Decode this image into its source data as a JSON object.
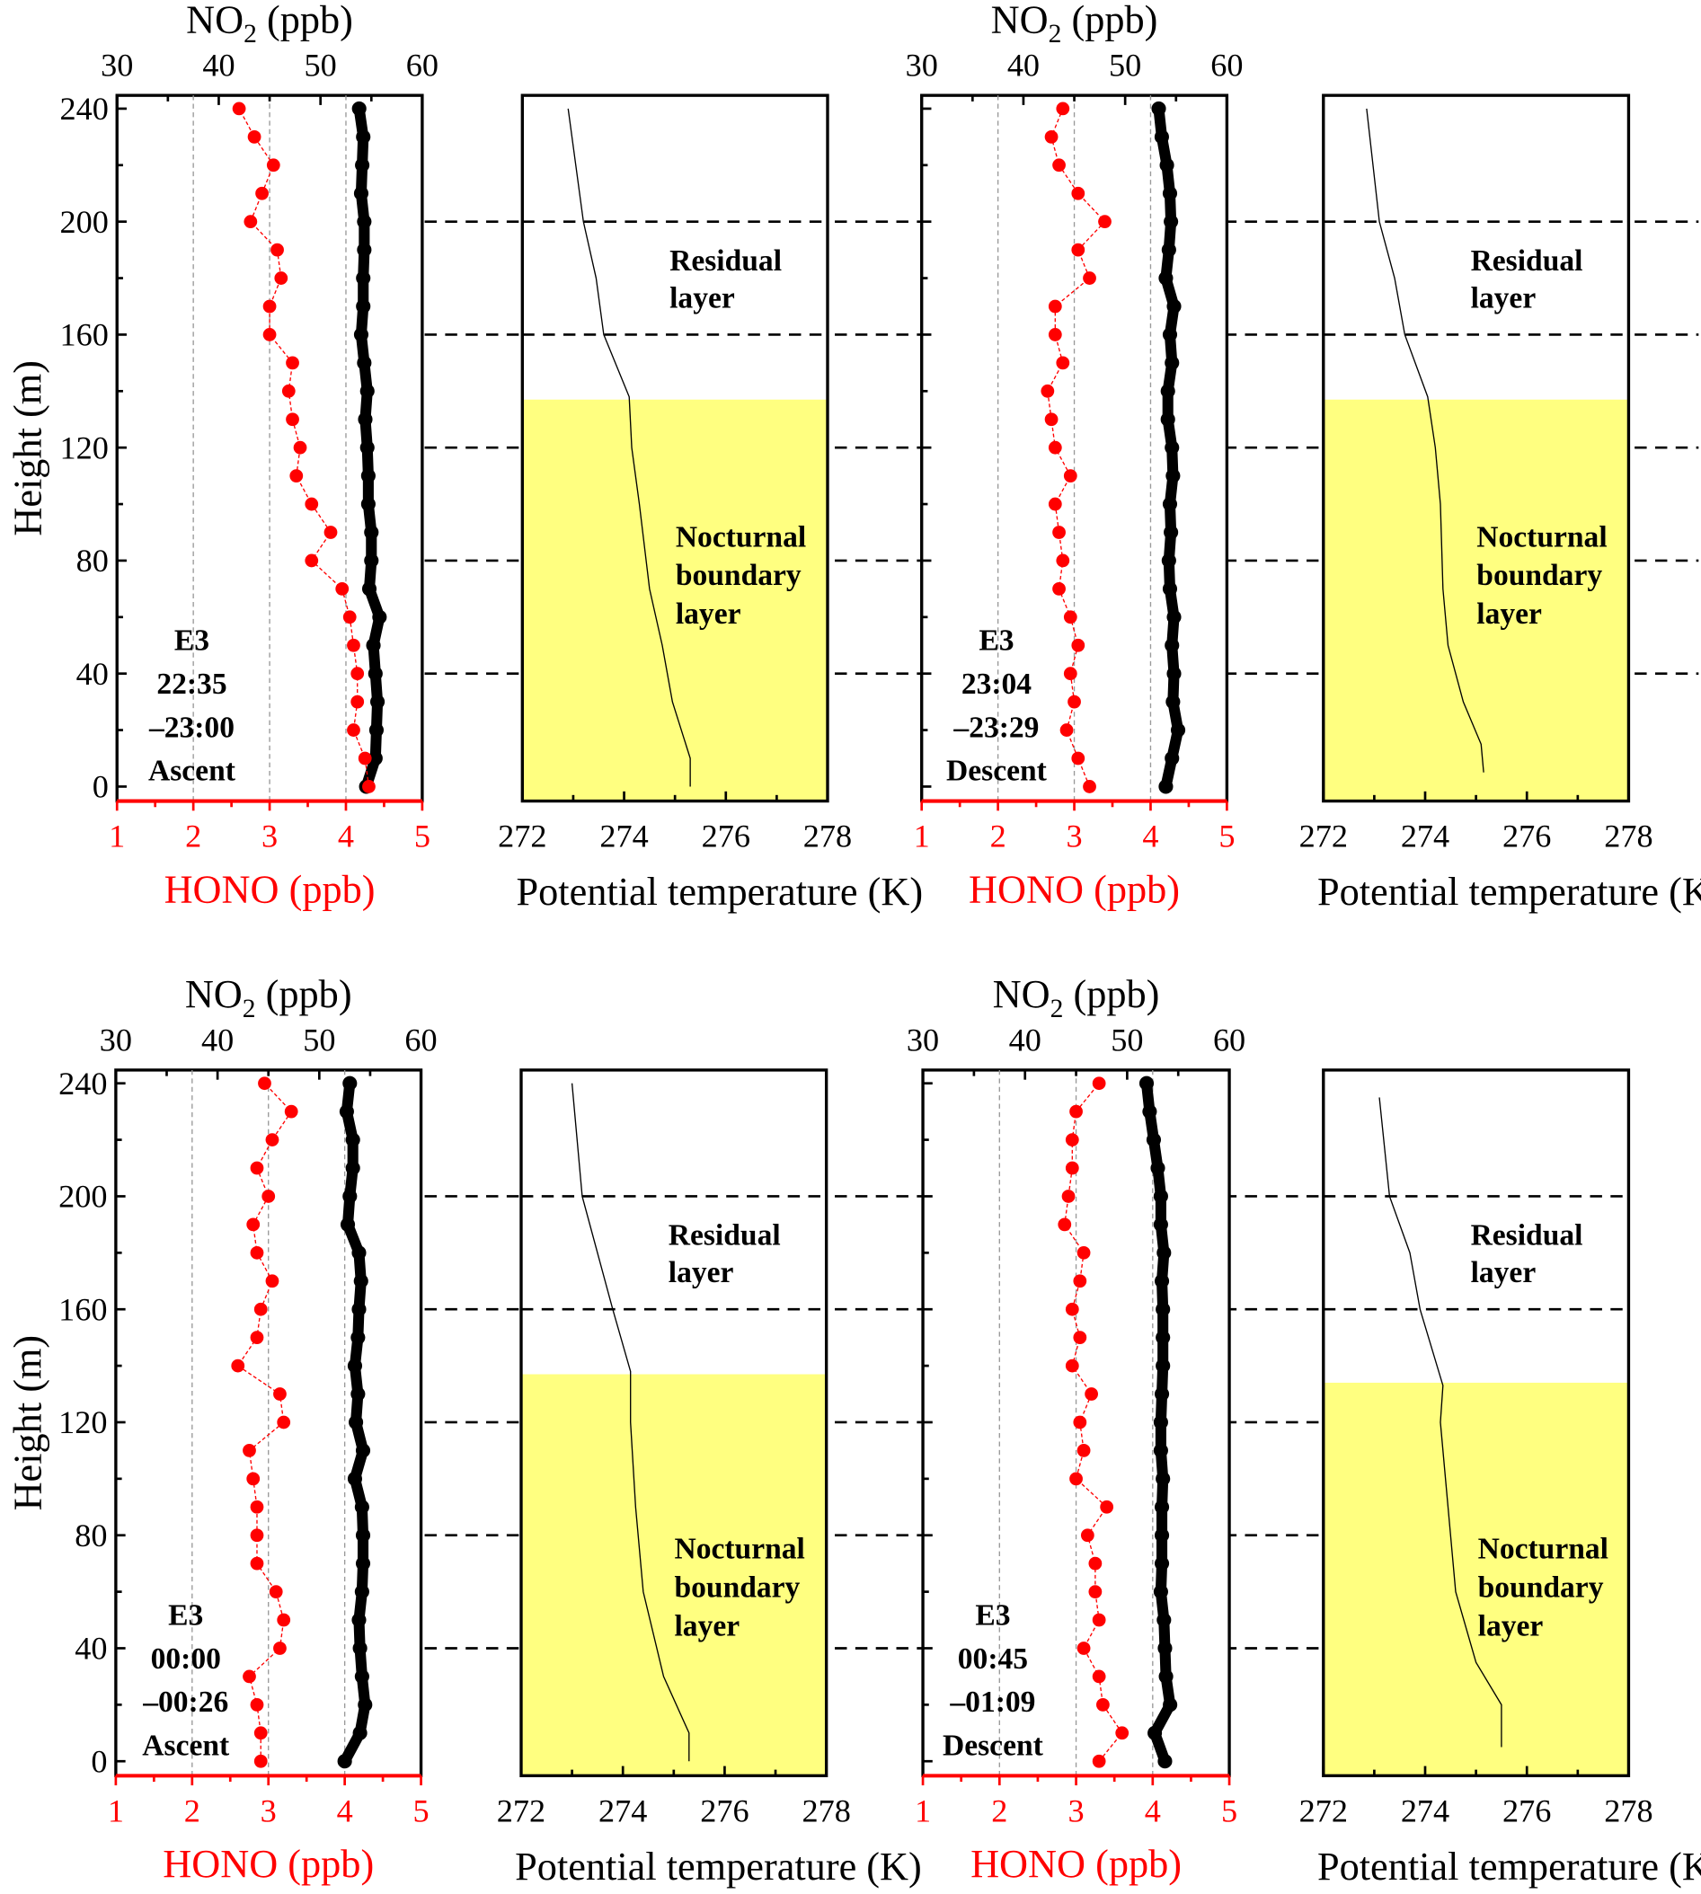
{
  "chart_data": {
    "type": "scatter",
    "colors": {
      "hono": "#ff0000",
      "no2": "#000000",
      "nbl_fill": "#ffff80",
      "theta": "#000000"
    },
    "common": {
      "ylabel": "Height (m)",
      "ylim": [
        -5,
        245
      ],
      "yticks": [
        0,
        40,
        80,
        120,
        160,
        200,
        240
      ],
      "hono_xlabel": "HONO (ppb)",
      "hono_xlim": [
        1,
        5
      ],
      "hono_xticks": [
        1,
        2,
        3,
        4,
        5
      ],
      "no2_label": {
        "main": "NO",
        "sub": "2",
        "unit": " (ppb)"
      },
      "no2_xlim": [
        30,
        60
      ],
      "no2_xticks": [
        30,
        40,
        50,
        60
      ],
      "theta_xlabel": "Potential temperature (K)",
      "theta_xlim": [
        272,
        278
      ],
      "theta_xticks": [
        272,
        274,
        276,
        278
      ],
      "reference_heights": [
        40,
        80,
        120,
        160,
        200
      ],
      "residual_label": [
        "Residual",
        "layer"
      ],
      "nbl_label": [
        "Nocturnal",
        "boundary",
        "layer"
      ]
    },
    "panels": [
      {
        "annotation": [
          "E3",
          "22:35",
          "–23:00",
          "Ascent"
        ],
        "height_step": 10,
        "hono": [
          4.3,
          4.25,
          4.1,
          4.15,
          4.15,
          4.1,
          4.05,
          3.95,
          3.55,
          3.8,
          3.55,
          3.35,
          3.4,
          3.3,
          3.25,
          3.3,
          3.0,
          3.0,
          3.15,
          3.1,
          2.75,
          2.9,
          3.05,
          2.8,
          2.6
        ],
        "no2": [
          54.5,
          55.4,
          55.5,
          55.6,
          55.4,
          55.2,
          55.8,
          54.8,
          55.0,
          55.0,
          54.7,
          54.7,
          54.6,
          54.4,
          54.6,
          54.3,
          54.0,
          54.2,
          54.2,
          54.3,
          54.3,
          54.0,
          54.1,
          54.2,
          53.8
        ],
        "theta": [
          [
            0,
            275.3
          ],
          [
            10,
            275.3
          ],
          [
            30,
            274.95
          ],
          [
            50,
            274.75
          ],
          [
            70,
            274.5
          ],
          [
            100,
            274.3
          ],
          [
            120,
            274.15
          ],
          [
            138,
            274.1
          ],
          [
            160,
            273.6
          ],
          [
            180,
            273.45
          ],
          [
            200,
            273.2
          ],
          [
            240,
            272.9
          ]
        ],
        "nbl_top": 137
      },
      {
        "annotation": [
          "E3",
          "23:04",
          "–23:29",
          "Descent"
        ],
        "height_step": 10,
        "hono": [
          3.2,
          3.05,
          2.9,
          3.0,
          2.95,
          3.05,
          2.95,
          2.8,
          2.85,
          2.8,
          2.75,
          2.95,
          2.75,
          2.7,
          2.65,
          2.85,
          2.75,
          2.75,
          3.2,
          3.05,
          3.4,
          3.05,
          2.8,
          2.7,
          2.85
        ],
        "no2": [
          54.0,
          54.6,
          55.2,
          54.7,
          54.8,
          54.6,
          54.8,
          54.4,
          54.3,
          54.5,
          54.4,
          54.7,
          54.6,
          54.2,
          54.2,
          54.6,
          54.4,
          54.8,
          54.0,
          54.3,
          54.5,
          54.4,
          54.1,
          53.6,
          53.3
        ],
        "theta": [
          [
            5,
            275.15
          ],
          [
            15,
            275.1
          ],
          [
            30,
            274.75
          ],
          [
            50,
            274.45
          ],
          [
            70,
            274.35
          ],
          [
            100,
            274.3
          ],
          [
            120,
            274.2
          ],
          [
            138,
            274.05
          ],
          [
            160,
            273.6
          ],
          [
            180,
            273.4
          ],
          [
            200,
            273.1
          ],
          [
            240,
            272.85
          ]
        ],
        "nbl_top": 137
      },
      {
        "annotation": [
          "E3",
          "00:00",
          "–00:26",
          "Ascent"
        ],
        "height_step": 10,
        "hono": [
          2.9,
          2.9,
          2.85,
          2.75,
          3.15,
          3.2,
          3.1,
          2.85,
          2.85,
          2.85,
          2.8,
          2.75,
          3.2,
          3.15,
          2.6,
          2.85,
          2.9,
          3.05,
          2.85,
          2.8,
          3.0,
          2.85,
          3.05,
          3.3,
          2.95
        ],
        "no2": [
          52.5,
          54.0,
          54.5,
          54.2,
          54.0,
          53.9,
          54.2,
          54.3,
          54.3,
          54.2,
          53.5,
          54.3,
          53.6,
          53.8,
          53.5,
          53.8,
          53.9,
          54.1,
          53.9,
          52.8,
          53.0,
          53.3,
          53.3,
          52.7,
          53.0
        ],
        "theta": [
          [
            0,
            275.3
          ],
          [
            10,
            275.3
          ],
          [
            30,
            274.8
          ],
          [
            60,
            274.4
          ],
          [
            90,
            274.25
          ],
          [
            120,
            274.15
          ],
          [
            138,
            274.15
          ],
          [
            160,
            273.8
          ],
          [
            180,
            273.5
          ],
          [
            200,
            273.2
          ],
          [
            240,
            273.0
          ]
        ],
        "nbl_top": 137
      },
      {
        "annotation": [
          "E3",
          "00:45",
          "–01:09",
          "Descent"
        ],
        "height_step": 10,
        "hono": [
          3.3,
          3.6,
          3.35,
          3.3,
          3.1,
          3.3,
          3.25,
          3.25,
          3.15,
          3.4,
          3.0,
          3.1,
          3.05,
          3.2,
          2.95,
          3.05,
          2.95,
          3.05,
          3.1,
          2.85,
          2.9,
          2.95,
          2.95,
          3.0,
          3.3
        ],
        "no2": [
          53.7,
          52.7,
          54.2,
          53.8,
          53.7,
          53.6,
          53.3,
          53.4,
          53.4,
          53.4,
          53.5,
          53.3,
          53.3,
          53.4,
          53.5,
          53.5,
          53.5,
          53.4,
          53.6,
          53.3,
          53.3,
          53.0,
          52.6,
          52.2,
          51.9
        ],
        "theta": [
          [
            5,
            275.5
          ],
          [
            20,
            275.5
          ],
          [
            35,
            275.0
          ],
          [
            60,
            274.6
          ],
          [
            90,
            274.45
          ],
          [
            120,
            274.3
          ],
          [
            133,
            274.35
          ],
          [
            160,
            273.9
          ],
          [
            180,
            273.7
          ],
          [
            200,
            273.3
          ],
          [
            235,
            273.1
          ]
        ],
        "nbl_top": 134
      }
    ]
  }
}
